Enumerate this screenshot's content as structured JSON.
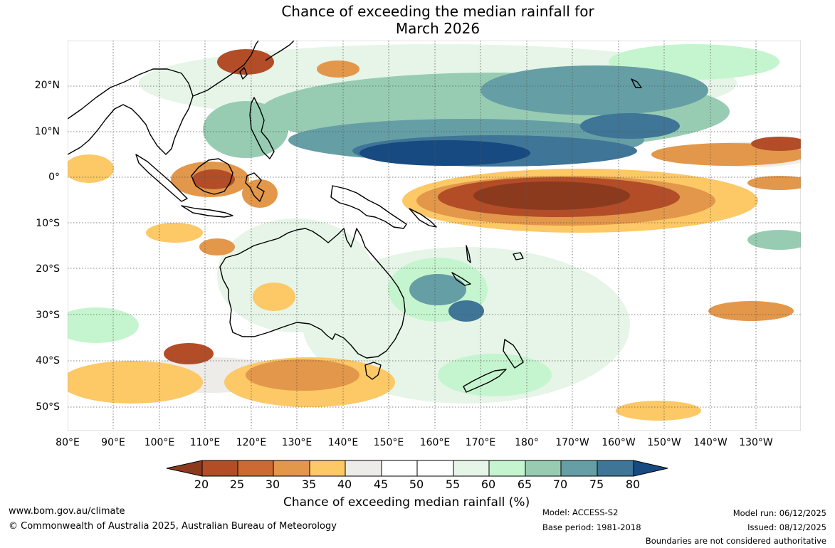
{
  "title": {
    "line1": "Chance of exceeding the median rainfall for",
    "line2": "March 2026"
  },
  "map": {
    "longitude_labels": [
      "80°E",
      "90°E",
      "100°E",
      "110°E",
      "120°E",
      "130°E",
      "140°E",
      "150°E",
      "160°E",
      "170°E",
      "180°",
      "170°W",
      "160°W",
      "150°W",
      "140°W",
      "130°W"
    ],
    "latitude_labels": [
      "20°N",
      "10°N",
      "0°",
      "10°S",
      "20°S",
      "30°S",
      "40°S",
      "50°S"
    ],
    "region": "Australasia and tropical Pacific",
    "land_outline_color": "#000000",
    "neutral_color": "#ffffff"
  },
  "colorbar": {
    "ticks": [
      "20",
      "25",
      "30",
      "35",
      "40",
      "45",
      "50",
      "55",
      "60",
      "65",
      "70",
      "75",
      "80"
    ],
    "colors": [
      "#8c3a1e",
      "#b24d28",
      "#cd6a34",
      "#e3974a",
      "#fdc866",
      "#eeece8",
      "#ffffff",
      "#ffffff",
      "#e6f5e8",
      "#c5f5cf",
      "#97ccb3",
      "#659fa5",
      "#3f7596",
      "#174a80"
    ],
    "label": "Chance of exceeding median rainfall (%)"
  },
  "footer": {
    "website": "www.bom.gov.au/climate",
    "copyright": "© Commonwealth of Australia 2025, Australian Bureau of Meteorology",
    "model": "Model: ACCESS-S2",
    "base_period": "Base period: 1981-2018",
    "model_run": "Model run: 06/12/2025",
    "issued": "Issued: 08/12/2025",
    "disclaimer": "Boundaries are not considered authoritative"
  }
}
